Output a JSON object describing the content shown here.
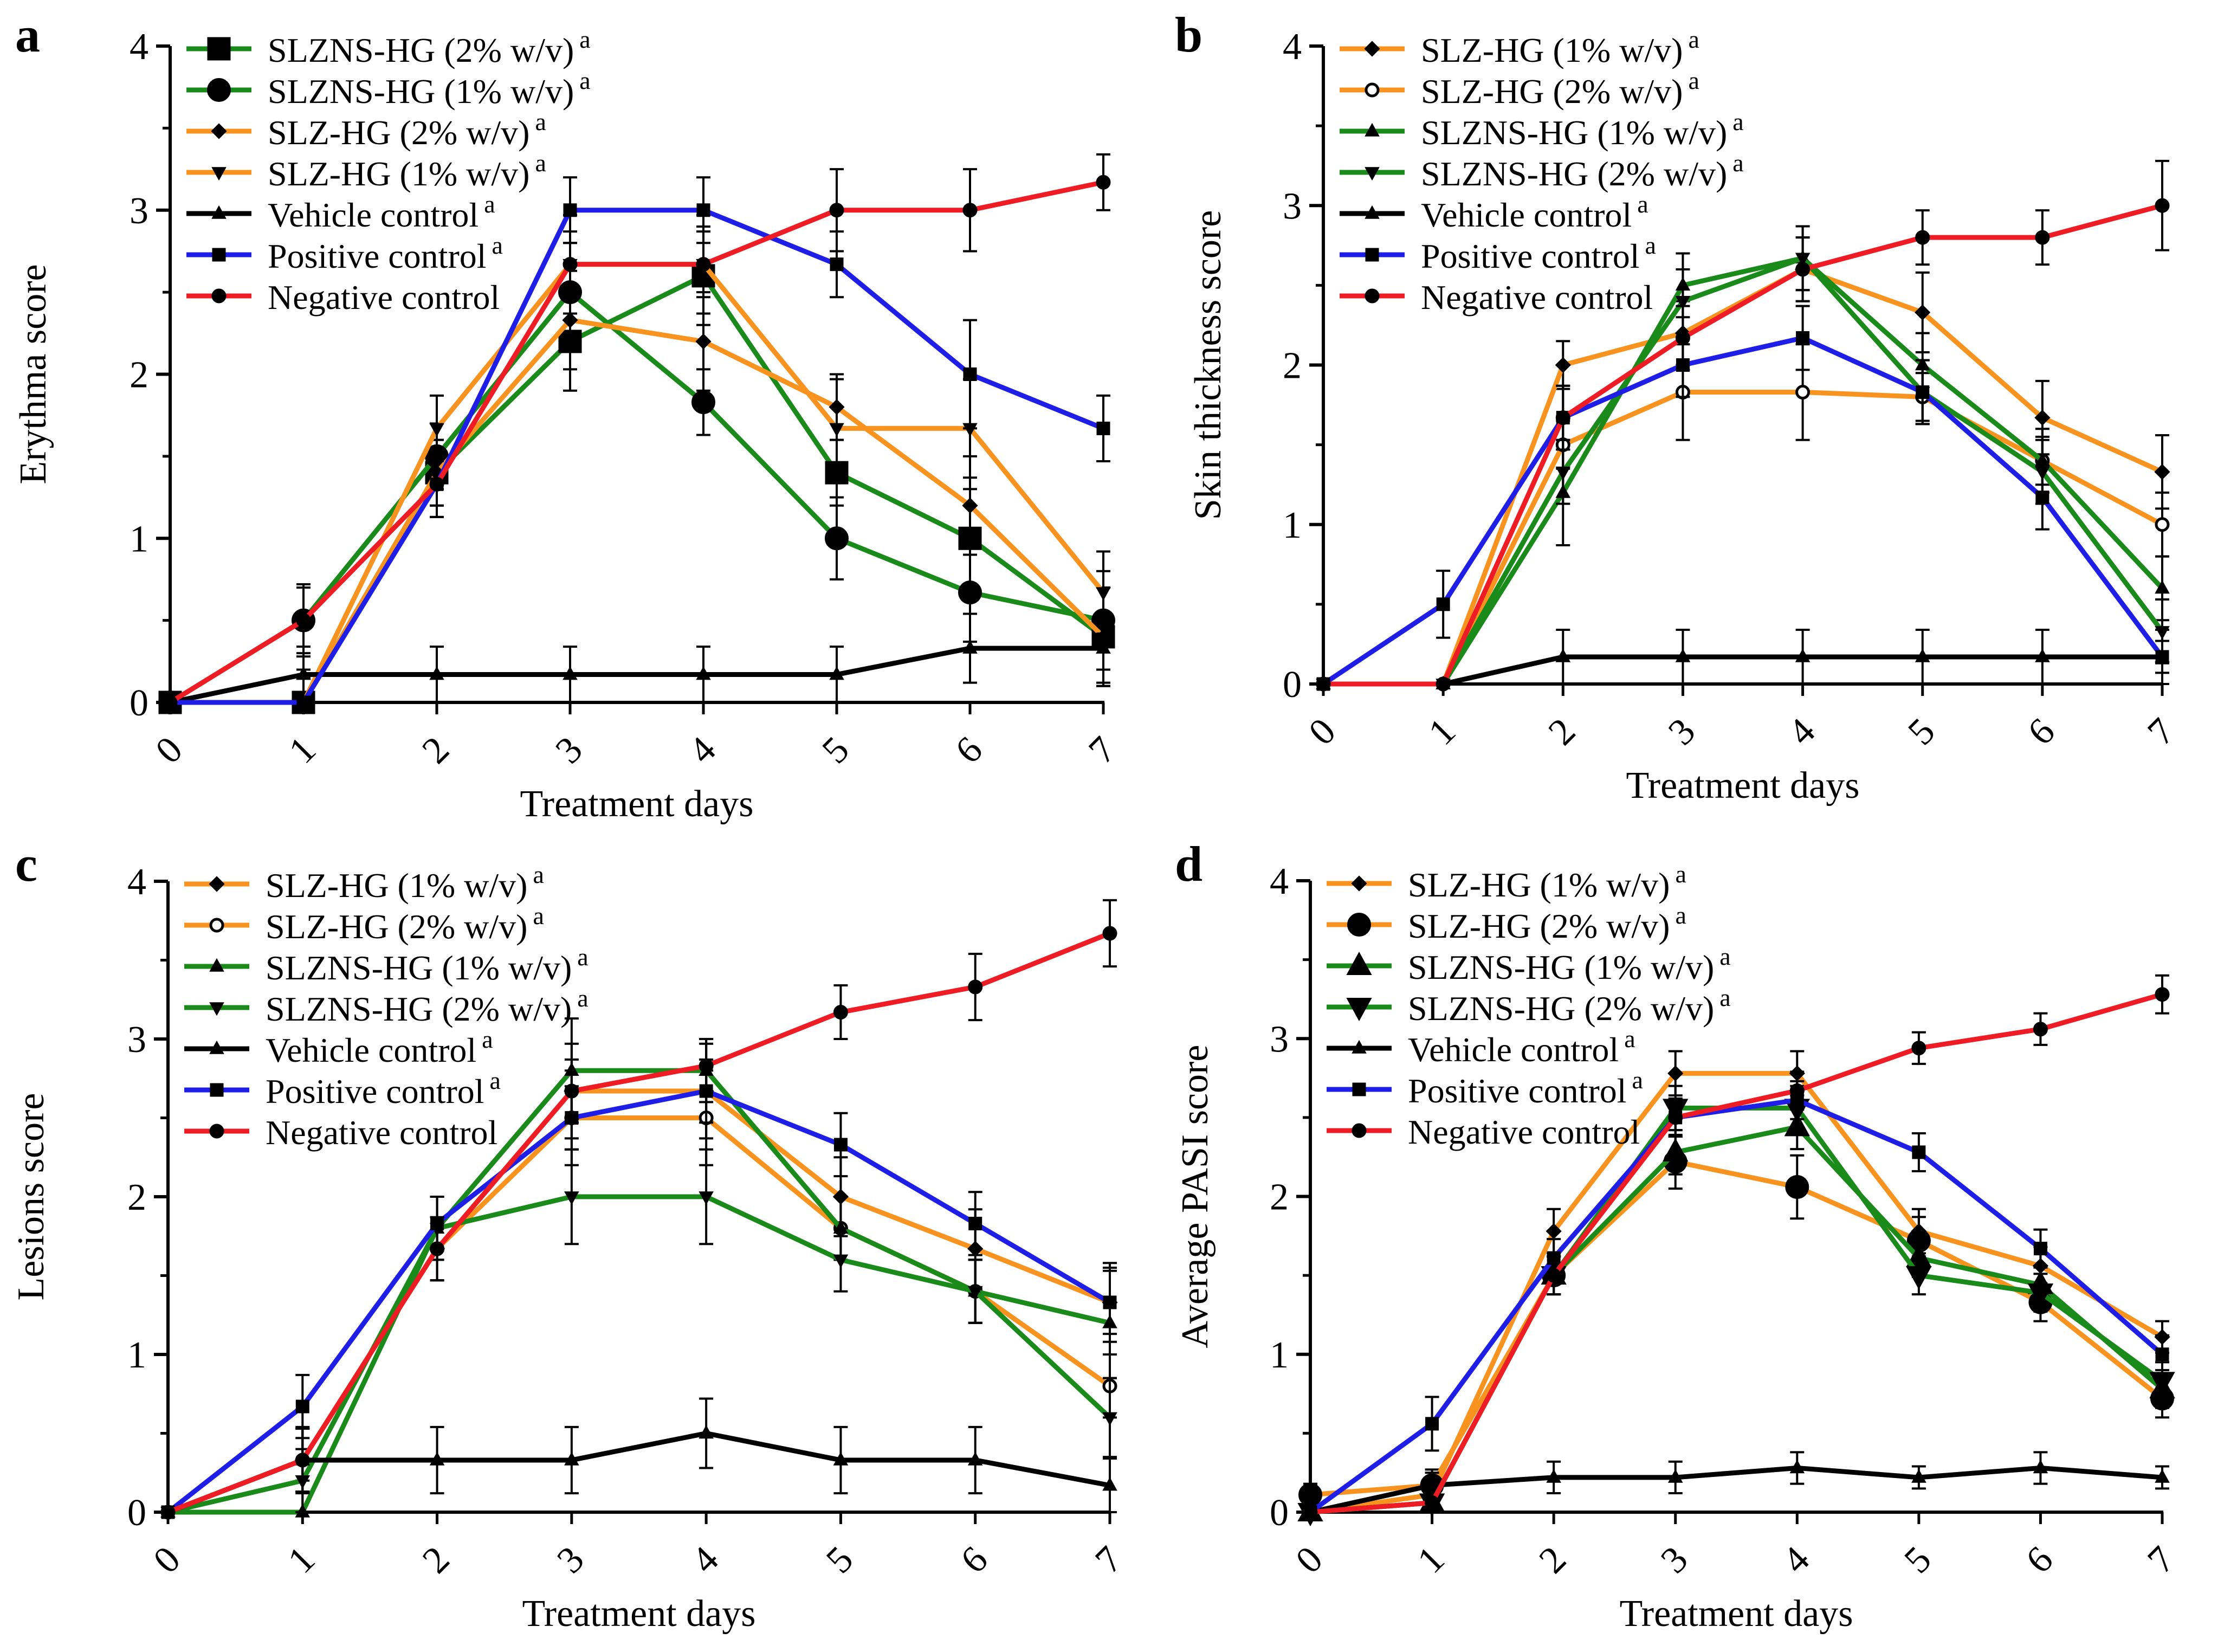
{
  "colors": {
    "red": "#ee1c24",
    "blue": "#1e1ee6",
    "orange": "#f7931e",
    "green": "#1a8a1a",
    "black": "#000000"
  },
  "chart_data": [
    {
      "type": "line",
      "panel": "a",
      "title": "",
      "xlabel": "Treatment days",
      "ylabel": "Erythma score",
      "x": [
        0,
        1,
        2,
        3,
        4,
        5,
        6,
        7
      ],
      "xticks": [
        "0",
        "1",
        "2",
        "3",
        "4",
        "5",
        "6",
        "7"
      ],
      "yticks": [
        "0",
        "1",
        "2",
        "3",
        "4"
      ],
      "ylim": [
        0,
        4
      ],
      "legend_position": "top-left",
      "series": [
        {
          "name": "SLZNS-HG (2% w/v)",
          "sup": "a",
          "color": "green",
          "marker": "square",
          "big": true,
          "values": [
            0,
            0,
            1.4,
            2.2,
            2.6,
            1.4,
            1.0,
            0.4
          ],
          "errors": [
            0,
            0.2,
            0.2,
            0.3,
            0.3,
            0.2,
            0.3,
            0.3
          ]
        },
        {
          "name": "SLZNS-HG (1% w/v)",
          "sup": "a",
          "color": "green",
          "marker": "circle",
          "big": true,
          "values": [
            0,
            0.5,
            1.5,
            2.5,
            1.83,
            1.0,
            0.67,
            0.5
          ],
          "errors": [
            0,
            0.2,
            0.2,
            0.3,
            0.2,
            0.25,
            0.3,
            0.3
          ]
        },
        {
          "name": "SLZ-HG (2% w/v)",
          "sup": "a",
          "color": "orange",
          "marker": "diamond",
          "big": false,
          "values": [
            0,
            0,
            1.4,
            2.33,
            2.2,
            1.8,
            1.2,
            0.4
          ],
          "errors": [
            0,
            0.15,
            0.2,
            0.3,
            0.3,
            0.2,
            0.3,
            0.3
          ]
        },
        {
          "name": "SLZ-HG (1% w/v)",
          "sup": "a",
          "color": "orange",
          "marker": "tri-down",
          "big": false,
          "values": [
            0,
            0,
            1.67,
            2.67,
            2.67,
            1.67,
            1.67,
            0.67
          ],
          "errors": [
            0,
            0.15,
            0.2,
            0.3,
            0.3,
            0.3,
            0.3,
            0.25
          ]
        },
        {
          "name": "Vehicle control",
          "sup": "a",
          "color": "black",
          "marker": "tri-up",
          "big": false,
          "values": [
            0,
            0.17,
            0.17,
            0.17,
            0.17,
            0.17,
            0.33,
            0.33
          ],
          "errors": [
            0,
            0.17,
            0.17,
            0.17,
            0.17,
            0.17,
            0.21,
            0.21
          ]
        },
        {
          "name": "Positive control",
          "sup": "a",
          "color": "blue",
          "marker": "square",
          "big": false,
          "values": [
            0,
            0,
            1.33,
            3.0,
            3.0,
            2.67,
            2.0,
            1.67
          ],
          "errors": [
            0,
            0.15,
            0.2,
            0.2,
            0.2,
            0.2,
            0.33,
            0.2
          ]
        },
        {
          "name": "Negative control",
          "sup": "",
          "color": "red",
          "marker": "circle",
          "big": false,
          "values": [
            0,
            0.5,
            1.33,
            2.67,
            2.67,
            3.0,
            3.0,
            3.17
          ],
          "errors": [
            0,
            0.22,
            0.2,
            0.2,
            0.2,
            0.25,
            0.25,
            0.17
          ]
        }
      ]
    },
    {
      "type": "line",
      "panel": "b",
      "title": "",
      "xlabel": "Treatment days",
      "ylabel": "Skin thickness score",
      "x": [
        0,
        1,
        2,
        3,
        4,
        5,
        6,
        7
      ],
      "xticks": [
        "0",
        "1",
        "2",
        "3",
        "4",
        "5",
        "6",
        "7"
      ],
      "yticks": [
        "0",
        "1",
        "2",
        "3",
        "4"
      ],
      "ylim": [
        0,
        4
      ],
      "legend_position": "top-left",
      "series": [
        {
          "name": "SLZ-HG (1% w/v)",
          "sup": "a",
          "color": "orange",
          "marker": "diamond",
          "big": false,
          "values": [
            0,
            0,
            2.0,
            2.2,
            2.6,
            2.33,
            1.67,
            1.33
          ],
          "errors": [
            0,
            0,
            0.15,
            0.2,
            0.2,
            0.25,
            0.23,
            0.23
          ]
        },
        {
          "name": "SLZ-HG (2% w/v)",
          "sup": "a",
          "color": "orange",
          "marker": "circle-open",
          "big": false,
          "values": [
            0,
            0,
            1.5,
            1.83,
            1.83,
            1.8,
            1.4,
            1.0
          ],
          "errors": [
            0,
            0,
            0.15,
            0.3,
            0.3,
            0.15,
            0.15,
            0.2
          ]
        },
        {
          "name": "SLZNS-HG (1% w/v)",
          "sup": "a",
          "color": "green",
          "marker": "tri-up",
          "big": false,
          "values": [
            0,
            0,
            1.2,
            2.5,
            2.67,
            2.0,
            1.4,
            0.6
          ],
          "errors": [
            0,
            0,
            0.33,
            0.2,
            0.2,
            0.2,
            0.2,
            0.2
          ]
        },
        {
          "name": "SLZNS-HG (2% w/v)",
          "sup": "a",
          "color": "green",
          "marker": "tri-down",
          "big": false,
          "values": [
            0,
            0,
            1.33,
            2.4,
            2.67,
            1.83,
            1.33,
            0.33
          ],
          "errors": [
            0,
            0,
            0.2,
            0.2,
            0.2,
            0.2,
            0.2,
            0.2
          ]
        },
        {
          "name": "Vehicle control",
          "sup": "a",
          "color": "black",
          "marker": "tri-up",
          "big": false,
          "values": [
            0,
            0,
            0.17,
            0.17,
            0.17,
            0.17,
            0.17,
            0.17
          ],
          "errors": [
            0,
            0,
            0.17,
            0.17,
            0.17,
            0.17,
            0.17,
            0.17
          ]
        },
        {
          "name": "Positive control",
          "sup": "a",
          "color": "blue",
          "marker": "square",
          "big": false,
          "values": [
            0,
            0.5,
            1.67,
            2.0,
            2.17,
            1.83,
            1.17,
            0.17
          ],
          "errors": [
            0,
            0.21,
            0.2,
            0.2,
            0.2,
            0.2,
            0.2,
            0.1
          ]
        },
        {
          "name": "Negative control",
          "sup": "",
          "color": "red",
          "marker": "circle",
          "big": false,
          "values": [
            0,
            0,
            1.67,
            2.17,
            2.6,
            2.8,
            2.8,
            3.0
          ],
          "errors": [
            0,
            0,
            0.2,
            0.2,
            0.2,
            0.17,
            0.17,
            0.28
          ]
        }
      ]
    },
    {
      "type": "line",
      "panel": "c",
      "title": "",
      "xlabel": "Treatment days",
      "ylabel": "Lesions score",
      "x": [
        0,
        1,
        2,
        3,
        4,
        5,
        6,
        7
      ],
      "xticks": [
        "0",
        "1",
        "2",
        "3",
        "4",
        "5",
        "6",
        "7"
      ],
      "yticks": [
        "0",
        "1",
        "2",
        "3",
        "4"
      ],
      "ylim": [
        0,
        4
      ],
      "legend_position": "top-left",
      "series": [
        {
          "name": "SLZ-HG (1% w/v)",
          "sup": "a",
          "color": "orange",
          "marker": "diamond",
          "big": false,
          "values": [
            0,
            0.33,
            1.67,
            2.67,
            2.67,
            2.0,
            1.67,
            1.33
          ],
          "errors": [
            0,
            0.2,
            0.2,
            0.3,
            0.3,
            0.25,
            0.25,
            0.25
          ]
        },
        {
          "name": "SLZ-HG (2% w/v)",
          "sup": "a",
          "color": "orange",
          "marker": "circle-open",
          "big": false,
          "values": [
            0,
            0.33,
            1.67,
            2.5,
            2.5,
            1.8,
            1.4,
            0.8
          ],
          "errors": [
            0,
            0.2,
            0.2,
            0.3,
            0.3,
            0.2,
            0.2,
            0.2
          ]
        },
        {
          "name": "SLZNS-HG (1% w/v)",
          "sup": "a",
          "color": "green",
          "marker": "tri-up",
          "big": false,
          "values": [
            0,
            0,
            1.8,
            2.8,
            2.8,
            1.8,
            1.4,
            1.2
          ],
          "errors": [
            0,
            0.2,
            0.2,
            0.33,
            0.2,
            0.2,
            0.2,
            0.35
          ]
        },
        {
          "name": "SLZNS-HG (2% w/v)",
          "sup": "a",
          "color": "green",
          "marker": "tri-down",
          "big": false,
          "values": [
            0,
            0.2,
            1.8,
            2.0,
            2.0,
            1.6,
            1.4,
            0.6
          ],
          "errors": [
            0,
            0.2,
            0.2,
            0.3,
            0.3,
            0.2,
            0.2,
            0.25
          ]
        },
        {
          "name": "Vehicle control",
          "sup": "a",
          "color": "black",
          "marker": "tri-up",
          "big": false,
          "values": [
            0,
            0.33,
            0.33,
            0.33,
            0.5,
            0.33,
            0.33,
            0.17
          ],
          "errors": [
            0,
            0.21,
            0.21,
            0.21,
            0.22,
            0.21,
            0.21,
            0.17
          ]
        },
        {
          "name": "Positive control",
          "sup": "a",
          "color": "blue",
          "marker": "square",
          "big": false,
          "values": [
            0,
            0.67,
            1.83,
            2.5,
            2.67,
            2.33,
            1.83,
            1.33
          ],
          "errors": [
            0,
            0.2,
            0.17,
            0.2,
            0.2,
            0.2,
            0.2,
            0.2
          ]
        },
        {
          "name": "Negative control",
          "sup": "",
          "color": "red",
          "marker": "circle",
          "big": false,
          "values": [
            0,
            0.33,
            1.67,
            2.67,
            2.83,
            3.17,
            3.33,
            3.67
          ],
          "errors": [
            0,
            0.2,
            0.2,
            0.2,
            0.17,
            0.17,
            0.21,
            0.21
          ]
        }
      ]
    },
    {
      "type": "line",
      "panel": "d",
      "title": "",
      "xlabel": "Treatment days",
      "ylabel": "Average PASI score",
      "x": [
        0,
        1,
        2,
        3,
        4,
        5,
        6,
        7
      ],
      "xticks": [
        "0",
        "1",
        "2",
        "3",
        "4",
        "5",
        "6",
        "7"
      ],
      "yticks": [
        "0",
        "1",
        "2",
        "3",
        "4"
      ],
      "ylim": [
        0,
        4
      ],
      "legend_position": "top-left",
      "series": [
        {
          "name": "SLZ-HG (1% w/v)",
          "sup": "a",
          "color": "orange",
          "marker": "diamond",
          "big": false,
          "values": [
            0,
            0.11,
            1.78,
            2.78,
            2.78,
            1.78,
            1.56,
            1.11
          ],
          "errors": [
            0,
            0.07,
            0.14,
            0.14,
            0.14,
            0.14,
            0.12,
            0.1
          ]
        },
        {
          "name": "SLZ-HG (2% w/v)",
          "sup": "a",
          "color": "orange",
          "marker": "circle",
          "big": true,
          "values": [
            0.11,
            0.17,
            1.5,
            2.22,
            2.06,
            1.72,
            1.33,
            0.72
          ],
          "errors": [
            0.07,
            0.1,
            0.12,
            0.17,
            0.2,
            0.15,
            0.12,
            0.12
          ]
        },
        {
          "name": "SLZNS-HG (1% w/v)",
          "sup": "a",
          "color": "green",
          "marker": "tri-up",
          "big": true,
          "values": [
            0,
            0.06,
            1.5,
            2.28,
            2.44,
            1.61,
            1.44,
            0.78
          ],
          "errors": [
            0,
            0.06,
            0.12,
            0.14,
            0.14,
            0.12,
            0.12,
            0.12
          ]
        },
        {
          "name": "SLZNS-HG (2% w/v)",
          "sup": "a",
          "color": "green",
          "marker": "tri-down",
          "big": true,
          "values": [
            0,
            0.06,
            1.5,
            2.56,
            2.56,
            1.5,
            1.39,
            0.83
          ],
          "errors": [
            0,
            0.06,
            0.12,
            0.14,
            0.14,
            0.12,
            0.12,
            0.12
          ]
        },
        {
          "name": "Vehicle control",
          "sup": "a",
          "color": "black",
          "marker": "tri-up",
          "big": false,
          "values": [
            0,
            0.17,
            0.22,
            0.22,
            0.28,
            0.22,
            0.28,
            0.22
          ],
          "errors": [
            0,
            0.08,
            0.1,
            0.1,
            0.1,
            0.07,
            0.1,
            0.07
          ]
        },
        {
          "name": "Positive control",
          "sup": "a",
          "color": "blue",
          "marker": "square",
          "big": false,
          "values": [
            0,
            0.56,
            1.61,
            2.5,
            2.61,
            2.28,
            1.67,
            1.0
          ],
          "errors": [
            0,
            0.17,
            0.12,
            0.12,
            0.12,
            0.12,
            0.12,
            0.12
          ]
        },
        {
          "name": "Negative control",
          "sup": "",
          "color": "red",
          "marker": "circle",
          "big": false,
          "values": [
            0,
            0.06,
            1.5,
            2.5,
            2.67,
            2.94,
            3.06,
            3.28
          ],
          "errors": [
            0,
            0.06,
            0.12,
            0.12,
            0.12,
            0.1,
            0.1,
            0.12
          ]
        }
      ]
    }
  ]
}
